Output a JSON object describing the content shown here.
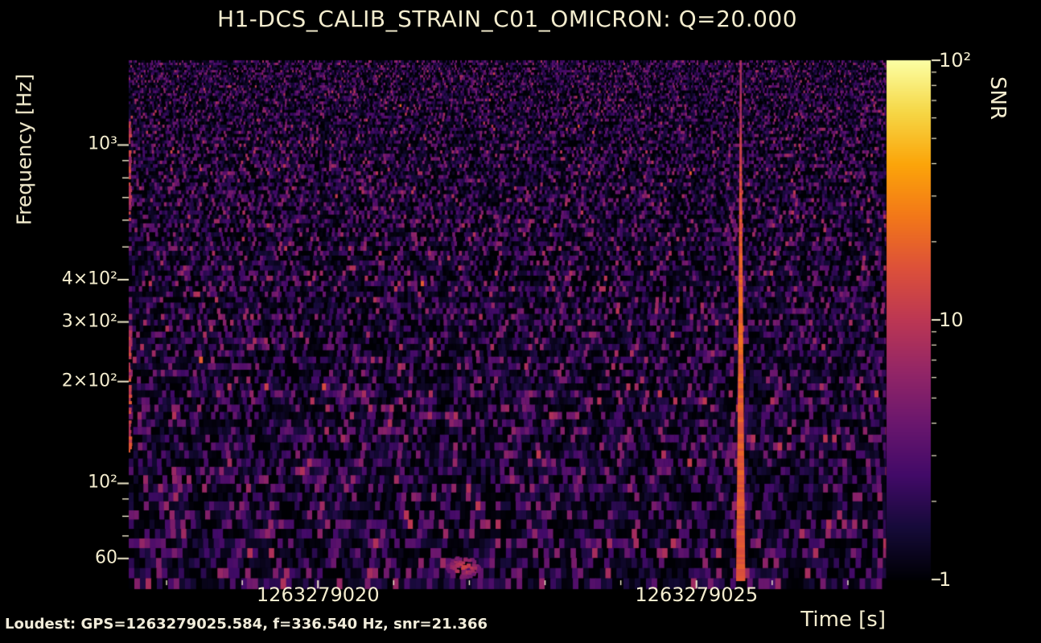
{
  "page": {
    "background": "#000000",
    "text_color": "#f3ecce",
    "footer_text_color": "#f1ecda"
  },
  "title": "H1-DCS_CALIB_STRAIN_C01_OMICRON: Q=20.000",
  "footer": {
    "loudest_label": "Loudest: GPS=1263279025.584, f=336.540 Hz, snr=21.366"
  },
  "chart_data": {
    "type": "heatmap",
    "title": "H1-DCS_CALIB_STRAIN_C01_OMICRON: Q=20.000",
    "channel": "H1-DCS_CALIB_STRAIN_C01_OMICRON",
    "q_value": 20.0,
    "xlabel": "Time [s]",
    "ylabel": "Frequency [Hz]",
    "x_range": [
      1263279017.5,
      1263279027.5
    ],
    "x_major_ticks": [
      {
        "value": 1263279020,
        "label": "1263279020"
      },
      {
        "value": 1263279025,
        "label": "1263279025"
      }
    ],
    "x_minor_ticks": [
      1263279018,
      1263279019,
      1263279021,
      1263279022,
      1263279023,
      1263279024,
      1263279026,
      1263279027
    ],
    "y_scale": "log",
    "y_range": [
      52,
      1780
    ],
    "y_major_ticks": [
      {
        "value": 60,
        "label": "60"
      },
      {
        "value": 100,
        "label": "10²"
      },
      {
        "value": 200,
        "label": "2×10²"
      },
      {
        "value": 300,
        "label": "3×10²"
      },
      {
        "value": 400,
        "label": "4×10²"
      },
      {
        "value": 1000,
        "label": "10³"
      }
    ],
    "y_minor_ticks": [
      70,
      80,
      90,
      500,
      600,
      700,
      800,
      900
    ],
    "grid": false,
    "colorbar": {
      "label": "SNR",
      "scale": "log",
      "range": [
        1,
        100
      ],
      "major_ticks": [
        {
          "value": 1,
          "label": "1"
        },
        {
          "value": 10,
          "label": "10"
        },
        {
          "value": 100,
          "label": "10²"
        }
      ],
      "minor_ticks": [
        2,
        3,
        4,
        5,
        6,
        7,
        8,
        9,
        20,
        30,
        40,
        50,
        60,
        70,
        80,
        90
      ],
      "colormap": "inferno",
      "colormap_stops": [
        [
          0.0,
          "#000004"
        ],
        [
          0.1,
          "#160b39"
        ],
        [
          0.2,
          "#420a68"
        ],
        [
          0.3,
          "#6a176e"
        ],
        [
          0.4,
          "#932667"
        ],
        [
          0.5,
          "#bc3754"
        ],
        [
          0.6,
          "#dd513a"
        ],
        [
          0.7,
          "#f37819"
        ],
        [
          0.8,
          "#fca50a"
        ],
        [
          0.9,
          "#f6d746"
        ],
        [
          1.0,
          "#fcffa4"
        ]
      ]
    },
    "loudest": {
      "gps": 1263279025.584,
      "frequency_hz": 336.54,
      "snr": 21.366
    }
  }
}
